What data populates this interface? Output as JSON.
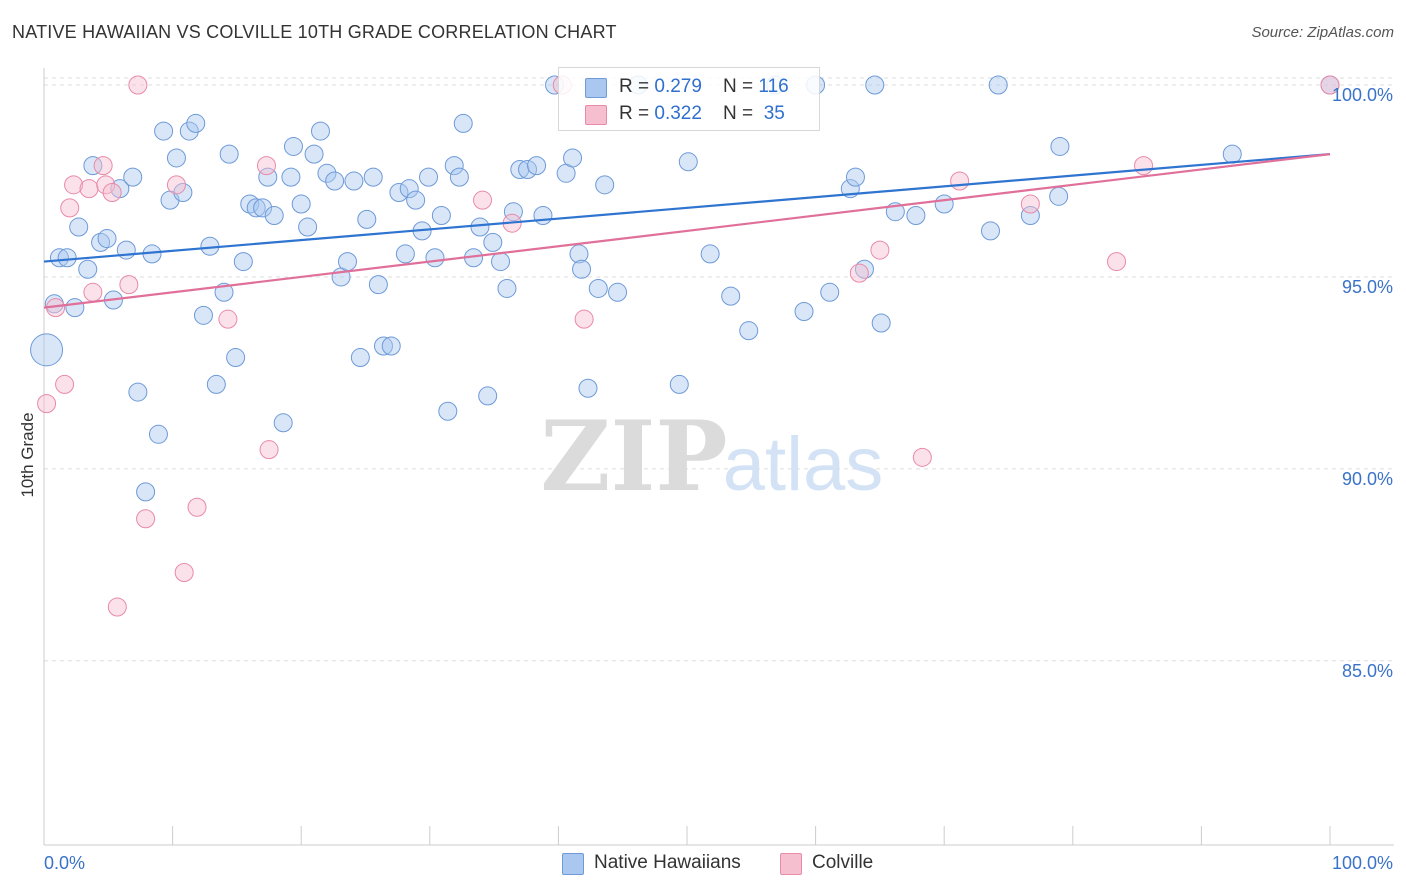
{
  "header": {
    "title": "NATIVE HAWAIIAN VS COLVILLE 10TH GRADE CORRELATION CHART",
    "source": "Source: ZipAtlas.com"
  },
  "legend_stats": {
    "blue": {
      "r_label": "R = ",
      "r_value": "0.279",
      "n_label": "N = ",
      "n_value": "116"
    },
    "pink": {
      "r_label": "R = ",
      "r_value": "0.322",
      "n_label": "N = ",
      "n_value": "35"
    }
  },
  "colors": {
    "blue_fill": "#a9c7ef",
    "blue_stroke": "#6e9ad8",
    "blue_line": "#2e74d0",
    "pink_fill": "#f6bfd0",
    "pink_stroke": "#e98aa8",
    "pink_line": "#e0709a",
    "tick_label": "#3a72c8",
    "grid": "#dddddd"
  },
  "chart_data": {
    "type": "scatter",
    "title": "NATIVE HAWAIIAN VS COLVILLE 10TH GRADE CORRELATION CHART",
    "xlabel": "",
    "ylabel": "10th Grade",
    "xlim": [
      0,
      100
    ],
    "ylim": [
      80.2,
      100.6
    ],
    "x_tick_labels": [
      "0.0%",
      "100.0%"
    ],
    "y_ticks": [
      85,
      90,
      95,
      100
    ],
    "y_tick_labels": [
      "85.0%",
      "90.0%",
      "95.0%",
      "100.0%"
    ],
    "grid": "horizontal dashed",
    "legend_placement": "bottom-center",
    "watermark": "ZIPatlas",
    "series": [
      {
        "name": "Native Hawaiians",
        "color": "blue",
        "trend": {
          "x": [
            0,
            100
          ],
          "y": [
            95.4,
            98.2
          ]
        },
        "points": [
          [
            0.2,
            93.1,
            "big"
          ],
          [
            0.8,
            94.3
          ],
          [
            1.2,
            95.5
          ],
          [
            1.8,
            95.5
          ],
          [
            2.4,
            94.2
          ],
          [
            2.7,
            96.3
          ],
          [
            3.4,
            95.2
          ],
          [
            3.8,
            97.9
          ],
          [
            4.4,
            95.9
          ],
          [
            4.9,
            96.0
          ],
          [
            5.4,
            94.4
          ],
          [
            5.9,
            97.3
          ],
          [
            6.4,
            95.7
          ],
          [
            6.9,
            97.6
          ],
          [
            7.3,
            92.0
          ],
          [
            7.9,
            89.4
          ],
          [
            8.4,
            95.6
          ],
          [
            8.9,
            90.9
          ],
          [
            9.3,
            98.8
          ],
          [
            9.8,
            97.0
          ],
          [
            10.3,
            98.1
          ],
          [
            10.8,
            97.2
          ],
          [
            11.3,
            98.8
          ],
          [
            11.8,
            99.0
          ],
          [
            12.4,
            94.0
          ],
          [
            12.9,
            95.8
          ],
          [
            13.4,
            92.2
          ],
          [
            14.0,
            94.6
          ],
          [
            14.4,
            98.2
          ],
          [
            14.9,
            92.9
          ],
          [
            15.5,
            95.4
          ],
          [
            16.0,
            96.9
          ],
          [
            16.5,
            96.8
          ],
          [
            17.0,
            96.8
          ],
          [
            17.4,
            97.6
          ],
          [
            17.9,
            96.6
          ],
          [
            18.6,
            91.2
          ],
          [
            19.2,
            97.6
          ],
          [
            19.4,
            98.4
          ],
          [
            20.0,
            96.9
          ],
          [
            20.5,
            96.3
          ],
          [
            21.0,
            98.2
          ],
          [
            21.5,
            98.8
          ],
          [
            22.0,
            97.7
          ],
          [
            22.6,
            97.5
          ],
          [
            23.1,
            95.0
          ],
          [
            23.6,
            95.4
          ],
          [
            24.1,
            97.5
          ],
          [
            24.6,
            92.9
          ],
          [
            25.1,
            96.5
          ],
          [
            25.6,
            97.6
          ],
          [
            26.0,
            94.8
          ],
          [
            26.4,
            93.2
          ],
          [
            27.0,
            93.2
          ],
          [
            27.6,
            97.2
          ],
          [
            28.1,
            95.6
          ],
          [
            28.4,
            97.3
          ],
          [
            28.9,
            97.0
          ],
          [
            29.4,
            96.2
          ],
          [
            29.9,
            97.6
          ],
          [
            30.4,
            95.5
          ],
          [
            30.9,
            96.6
          ],
          [
            31.4,
            91.5
          ],
          [
            31.9,
            97.9
          ],
          [
            32.3,
            97.6
          ],
          [
            32.6,
            99.0
          ],
          [
            33.4,
            95.5
          ],
          [
            33.9,
            96.3
          ],
          [
            34.5,
            91.9
          ],
          [
            34.9,
            95.9
          ],
          [
            35.5,
            95.4
          ],
          [
            36.0,
            94.7
          ],
          [
            36.5,
            96.7
          ],
          [
            37.0,
            97.8
          ],
          [
            37.6,
            97.8
          ],
          [
            38.3,
            97.9
          ],
          [
            38.8,
            96.6
          ],
          [
            39.7,
            100.0
          ],
          [
            40.6,
            97.7
          ],
          [
            41.1,
            98.1
          ],
          [
            41.6,
            95.6
          ],
          [
            41.8,
            95.2
          ],
          [
            42.3,
            92.1
          ],
          [
            43.1,
            94.7
          ],
          [
            43.6,
            97.4
          ],
          [
            44.6,
            94.6
          ],
          [
            46.2,
            100.0
          ],
          [
            49.4,
            92.2
          ],
          [
            50.1,
            98.0
          ],
          [
            51.8,
            95.6
          ],
          [
            53.4,
            94.5
          ],
          [
            54.8,
            93.6
          ],
          [
            56.9,
            100.0
          ],
          [
            59.1,
            94.1
          ],
          [
            60.0,
            100.0
          ],
          [
            61.1,
            94.6
          ],
          [
            62.7,
            97.3
          ],
          [
            63.1,
            97.6
          ],
          [
            63.8,
            95.2
          ],
          [
            64.6,
            100.0
          ],
          [
            65.1,
            93.8
          ],
          [
            66.2,
            96.7
          ],
          [
            67.8,
            96.6
          ],
          [
            70.0,
            96.9
          ],
          [
            73.6,
            96.2
          ],
          [
            74.2,
            100.0
          ],
          [
            76.7,
            96.6
          ],
          [
            78.9,
            97.1
          ],
          [
            79.0,
            98.4
          ],
          [
            92.4,
            98.2
          ],
          [
            100.0,
            100.0
          ]
        ]
      },
      {
        "name": "Colville",
        "color": "pink",
        "trend": {
          "x": [
            0,
            100
          ],
          "y": [
            94.2,
            98.2
          ]
        },
        "points": [
          [
            0.2,
            91.7
          ],
          [
            0.9,
            94.2
          ],
          [
            1.6,
            92.2
          ],
          [
            2.0,
            96.8
          ],
          [
            2.3,
            97.4
          ],
          [
            3.5,
            97.3
          ],
          [
            3.8,
            94.6
          ],
          [
            4.6,
            97.9
          ],
          [
            4.8,
            97.4
          ],
          [
            5.3,
            97.2
          ],
          [
            5.7,
            86.4
          ],
          [
            6.6,
            94.8
          ],
          [
            7.3,
            100.0
          ],
          [
            7.9,
            88.7
          ],
          [
            10.3,
            97.4
          ],
          [
            10.9,
            87.3
          ],
          [
            11.9,
            89.0
          ],
          [
            14.3,
            93.9
          ],
          [
            17.3,
            97.9
          ],
          [
            17.5,
            90.5
          ],
          [
            34.1,
            97.0
          ],
          [
            36.4,
            96.4
          ],
          [
            40.3,
            100.0
          ],
          [
            42.0,
            93.9
          ],
          [
            63.4,
            95.1
          ],
          [
            65.0,
            95.7
          ],
          [
            68.3,
            90.3
          ],
          [
            71.2,
            97.5
          ],
          [
            76.7,
            96.9
          ],
          [
            83.4,
            95.4
          ],
          [
            85.5,
            97.9
          ],
          [
            100.0,
            100.0
          ]
        ]
      }
    ]
  }
}
